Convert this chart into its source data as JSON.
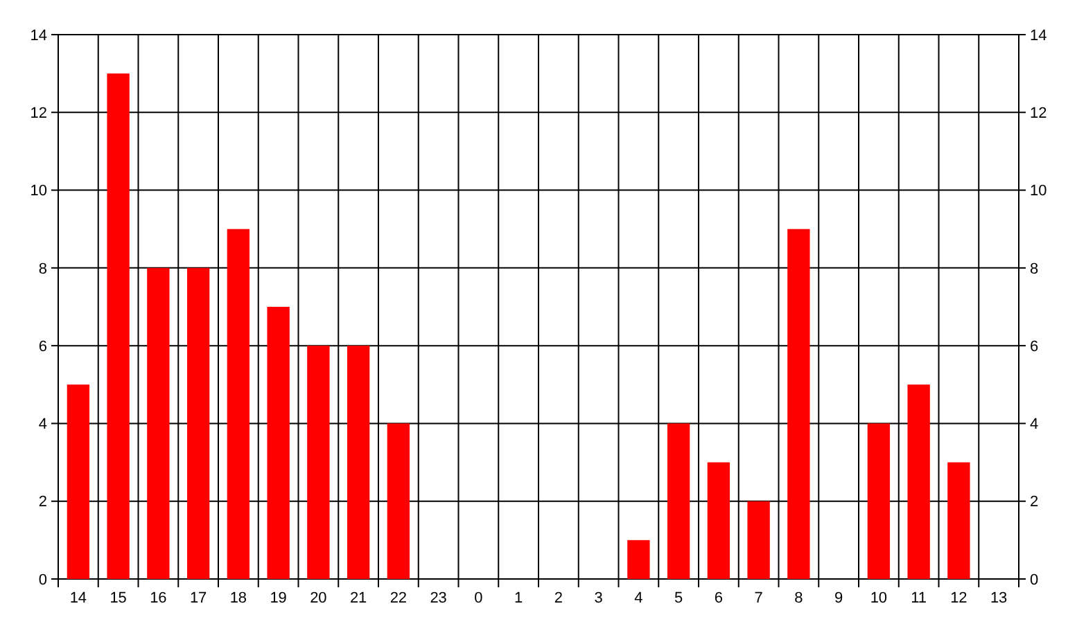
{
  "chart_data": {
    "type": "bar",
    "categories": [
      "14",
      "15",
      "16",
      "17",
      "18",
      "19",
      "20",
      "21",
      "22",
      "23",
      "0",
      "1",
      "2",
      "3",
      "4",
      "5",
      "6",
      "7",
      "8",
      "9",
      "10",
      "11",
      "12",
      "13"
    ],
    "values": [
      5,
      13,
      8,
      8,
      9,
      7,
      6,
      6,
      4,
      0,
      0,
      0,
      0,
      0,
      1,
      4,
      3,
      2,
      9,
      0,
      4,
      5,
      3,
      0
    ],
    "color": "#ff0000",
    "ylim": [
      0,
      14
    ],
    "yticks": [
      0,
      2,
      4,
      6,
      8,
      10,
      12,
      14
    ],
    "y2lim": [
      0,
      14
    ],
    "y2ticks": [
      0,
      2,
      4,
      6,
      8,
      10,
      12,
      14
    ],
    "grid": true
  }
}
